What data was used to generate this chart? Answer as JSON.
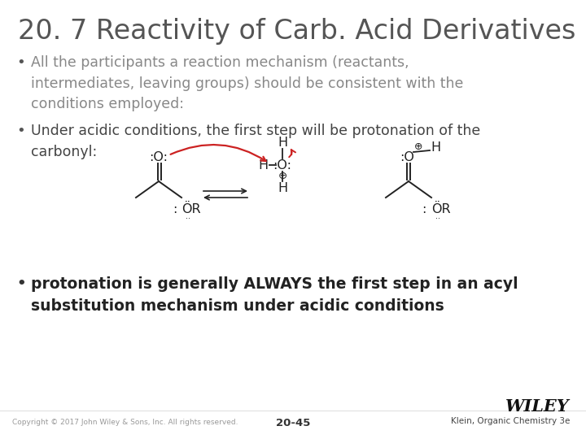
{
  "title": "20. 7 Reactivity of Carb. Acid Derivatives",
  "bullet1": "All the participants a reaction mechanism (reactants,\nintermediates, leaving groups) should be consistent with the\nconditions employed:",
  "bullet2": "Under acidic conditions, the first step will be protonation of the\ncarbonyl:",
  "bullet3": "protonation is generally ALWAYS the first step in an acyl\nsubstitution mechanism under acidic conditions",
  "footer_left": "Copyright © 2017 John Wiley & Sons, Inc. All rights reserved.",
  "footer_center": "20-45",
  "footer_right": "Klein, Organic Chemistry 3e",
  "footer_brand": "WILEY",
  "bg_color": "#ffffff",
  "title_color": "#555555",
  "bullet1_color": "#888888",
  "bullet2_color": "#444444",
  "bullet3_color": "#222222",
  "footer_color": "#999999",
  "bullet_color": "#555555",
  "title_fontsize": 24,
  "bullet_fontsize": 12.5,
  "bullet3_fontsize": 13.5,
  "red_arrow": "#cc2222",
  "chem_color": "#222222"
}
